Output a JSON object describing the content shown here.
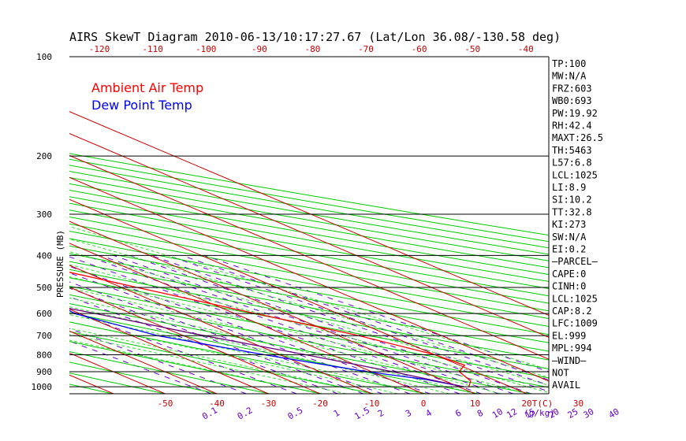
{
  "chart_data": {
    "type": "line",
    "title": "AIRS SkewT Diagram 2010-06-13/10:17:27.67 (Lat/Lon 36.08/-130.58 deg)",
    "ylabel": "PRESSURE (MB)",
    "pressure_ticks": [
      100,
      200,
      300,
      400,
      500,
      600,
      700,
      800,
      900,
      1000
    ],
    "top_temp_ticks": [
      "-120",
      "-110",
      "-100",
      "-90",
      "-80",
      "-70",
      "-60",
      "-50",
      "-40"
    ],
    "bottom_temp_ticks": [
      "-50",
      "-40",
      "-30",
      "-20",
      "-10",
      "0",
      "10",
      "20",
      "30"
    ],
    "bottom_temp_unit": "T(C)",
    "mixing_ratio_ticks": [
      "0.1",
      "0.2",
      "0.5",
      "1",
      "1.5",
      "2",
      "3",
      "4",
      "6",
      "8",
      "10",
      "12",
      "15",
      "20",
      "25",
      "30",
      "40"
    ],
    "mixing_ratio_unit": "(g/kg)",
    "legend": [
      {
        "label": "Ambient Air Temp",
        "color": "#ff0000"
      },
      {
        "label": "Dew Point Temp",
        "color": "#0000ff"
      }
    ],
    "series": [
      {
        "name": "Ambient Air Temp",
        "color": "#ff0000",
        "points": [
          {
            "p": 1000,
            "t": 12
          },
          {
            "p": 960,
            "t": 15
          },
          {
            "p": 900,
            "t": 17
          },
          {
            "p": 860,
            "t": 21
          },
          {
            "p": 800,
            "t": 20
          },
          {
            "p": 700,
            "t": 14
          },
          {
            "p": 600,
            "t": 4
          },
          {
            "p": 500,
            "t": -7
          },
          {
            "p": 400,
            "t": -20
          },
          {
            "p": 300,
            "t": -37
          },
          {
            "p": 250,
            "t": -47
          },
          {
            "p": 200,
            "t": -55
          },
          {
            "p": 150,
            "t": -60
          },
          {
            "p": 130,
            "t": -62
          },
          {
            "p": 100,
            "t": -68
          }
        ]
      },
      {
        "name": "Dew Point Temp",
        "color": "#0000ff",
        "points": [
          {
            "p": 1000,
            "t": 11
          },
          {
            "p": 950,
            "t": 7
          },
          {
            "p": 900,
            "t": -1
          },
          {
            "p": 800,
            "t": -13
          },
          {
            "p": 700,
            "t": -25
          },
          {
            "p": 600,
            "t": -31
          },
          {
            "p": 500,
            "t": -28
          },
          {
            "p": 400,
            "t": -33
          },
          {
            "p": 300,
            "t": -52
          },
          {
            "p": 250,
            "t": -65
          },
          {
            "p": 200,
            "t": -83
          },
          {
            "p": 150,
            "t": -100
          },
          {
            "p": 100,
            "t": -120
          }
        ]
      },
      {
        "name": "parcel",
        "color": "#6a0080",
        "points": [
          {
            "p": 1000,
            "t": 11
          },
          {
            "p": 900,
            "t": 4
          },
          {
            "p": 800,
            "t": -5
          },
          {
            "p": 700,
            "t": -16
          },
          {
            "p": 600,
            "t": -27
          },
          {
            "p": 500,
            "t": -41
          },
          {
            "p": 400,
            "t": -58
          },
          {
            "p": 300,
            "t": -80
          },
          {
            "p": 200,
            "t": -108
          },
          {
            "p": 100,
            "t": -158
          }
        ]
      }
    ],
    "stats": [
      "TP:100",
      "MW:N/A",
      "FRZ:603",
      "WB0:693",
      "PW:19.92",
      "RH:42.4",
      "MAXT:26.5",
      "TH:5463",
      "L57:6.8",
      "LCL:1025",
      "LI:8.9",
      "SI:10.2",
      "TT:32.8",
      "KI:273",
      "SW:N/A",
      "EI:0.2",
      "—PARCEL—",
      "CAPE:0",
      "CINH:0",
      "LCL:1025",
      "CAP:8.2",
      "LFC:1009",
      "EL:999",
      "MPL:994",
      "—WIND—",
      "NOT",
      "AVAIL"
    ],
    "colors": {
      "isotherm": "#cc0000",
      "adiabat": "#00cc00",
      "moist_adiabat": "#33dd33",
      "mixing_ratio": "#6600cc",
      "temp": "#ff0000",
      "dewpoint": "#0000ff",
      "parcel": "#6a0080"
    }
  }
}
